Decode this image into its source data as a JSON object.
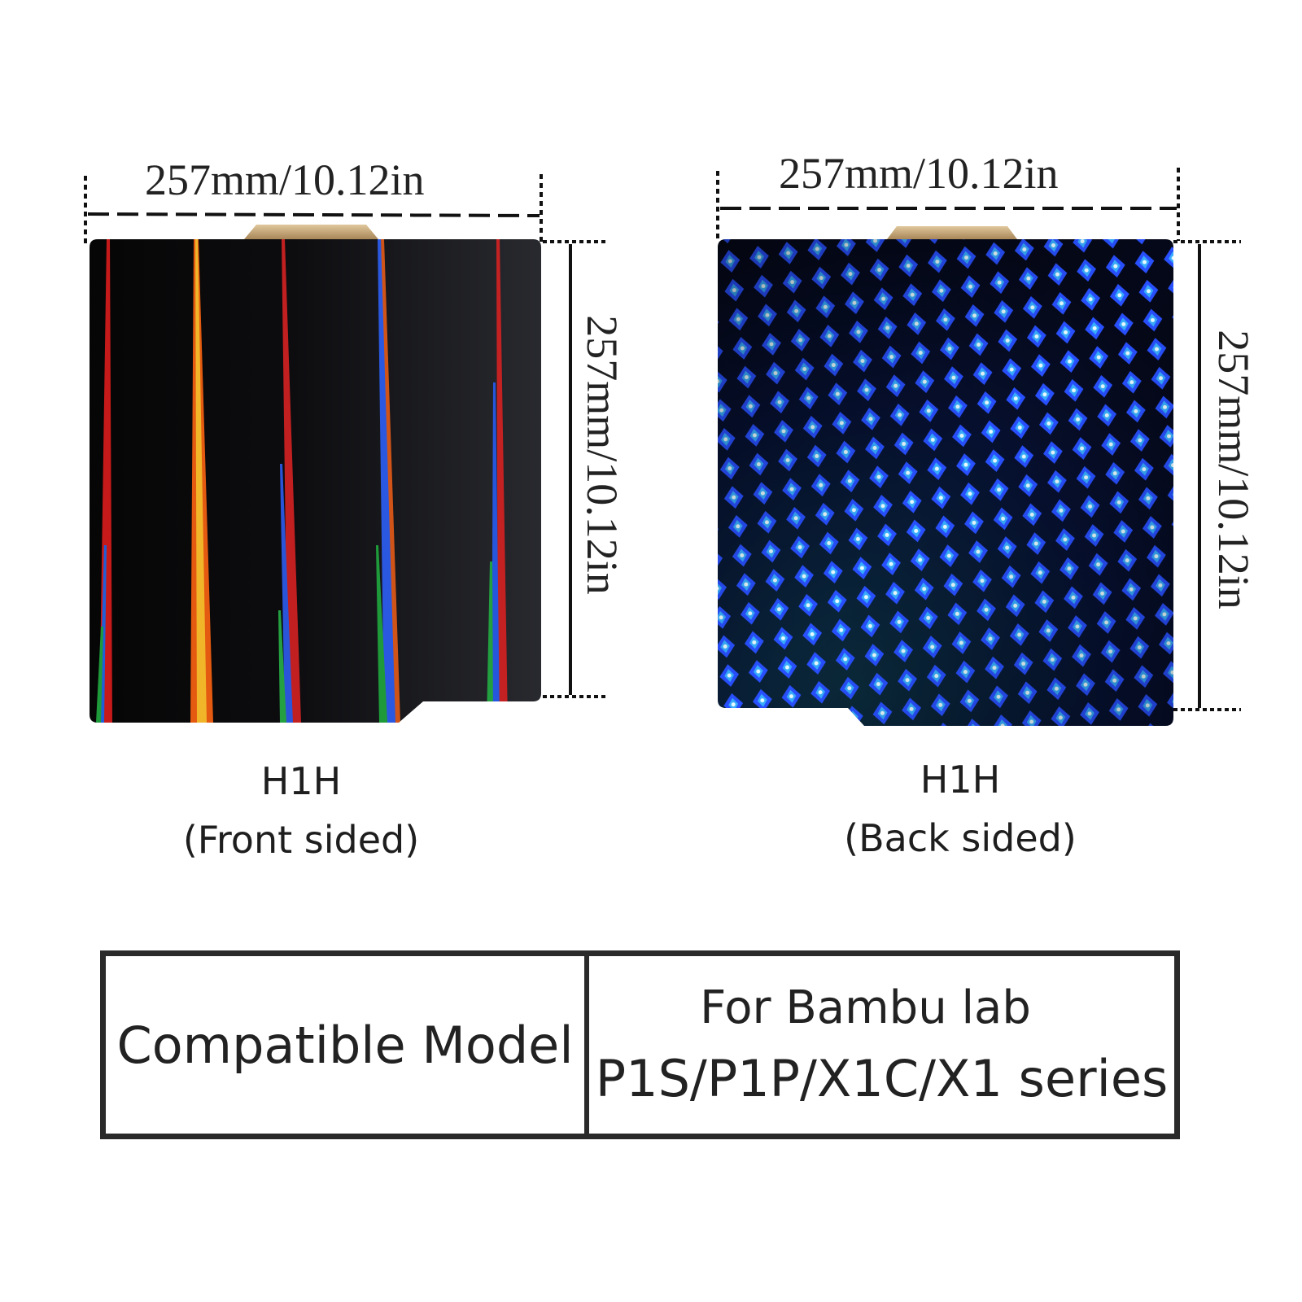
{
  "front": {
    "width_label": "257mm/10.12in",
    "height_label": "257mm/10.12in",
    "name": "H1H",
    "side": "(Front sided)"
  },
  "back": {
    "width_label": "257mm/10.12in",
    "height_label": "257mm/10.12in",
    "name": "H1H",
    "side": "(Back sided)"
  },
  "compat": {
    "label": "Compatible Model",
    "line1": "For Bambu lab",
    "line2": "P1S/P1P/X1C/X1 series"
  },
  "colors": {
    "front_base": "#0d0d10",
    "back_base": "#06081a",
    "tab": "#c8a878",
    "border": "#2a2a2a"
  }
}
